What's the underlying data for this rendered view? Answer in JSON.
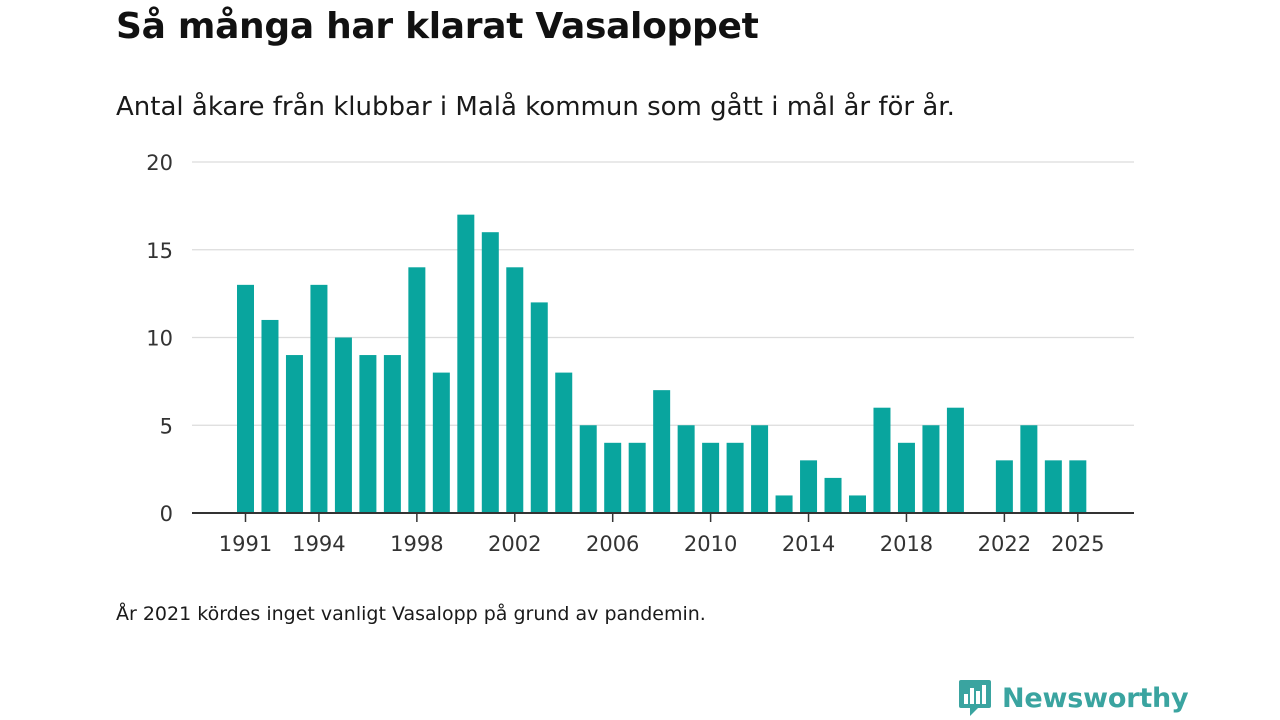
{
  "title": "Så många har klarat Vasaloppet",
  "subtitle": "Antal åkare från klubbar i Malå kommun som gått i mål år för år.",
  "footnote": "År 2021 kördes inget vanligt Vasalopp på grund av pandemin.",
  "brand": {
    "name": "Newsworthy",
    "icon": "newsworthy-logo-icon",
    "color": "#3aa4a0"
  },
  "colors": {
    "bar": "#09a59e",
    "grid": "#dcdcdc",
    "axis": "#333333"
  },
  "chart_data": {
    "type": "bar",
    "title": "Så många har klarat Vasaloppet",
    "xlabel": "",
    "ylabel": "",
    "categories": [
      1991,
      1992,
      1993,
      1994,
      1995,
      1996,
      1997,
      1998,
      1999,
      2000,
      2001,
      2002,
      2003,
      2004,
      2005,
      2006,
      2007,
      2008,
      2009,
      2010,
      2011,
      2012,
      2013,
      2014,
      2015,
      2016,
      2017,
      2018,
      2019,
      2020,
      2021,
      2022,
      2023,
      2024,
      2025
    ],
    "values": [
      13,
      11,
      9,
      13,
      10,
      9,
      9,
      14,
      8,
      17,
      16,
      14,
      12,
      8,
      5,
      4,
      4,
      7,
      5,
      4,
      4,
      5,
      1,
      3,
      2,
      1,
      6,
      4,
      5,
      6,
      null,
      3,
      5,
      3,
      3
    ],
    "x_ticks": [
      "1991",
      "1994",
      "1998",
      "2002",
      "2006",
      "2010",
      "2014",
      "2018",
      "2022",
      "2025"
    ],
    "y_ticks": [
      "0",
      "5",
      "10",
      "15",
      "20"
    ],
    "ylim": [
      0,
      20
    ],
    "grid": true
  }
}
